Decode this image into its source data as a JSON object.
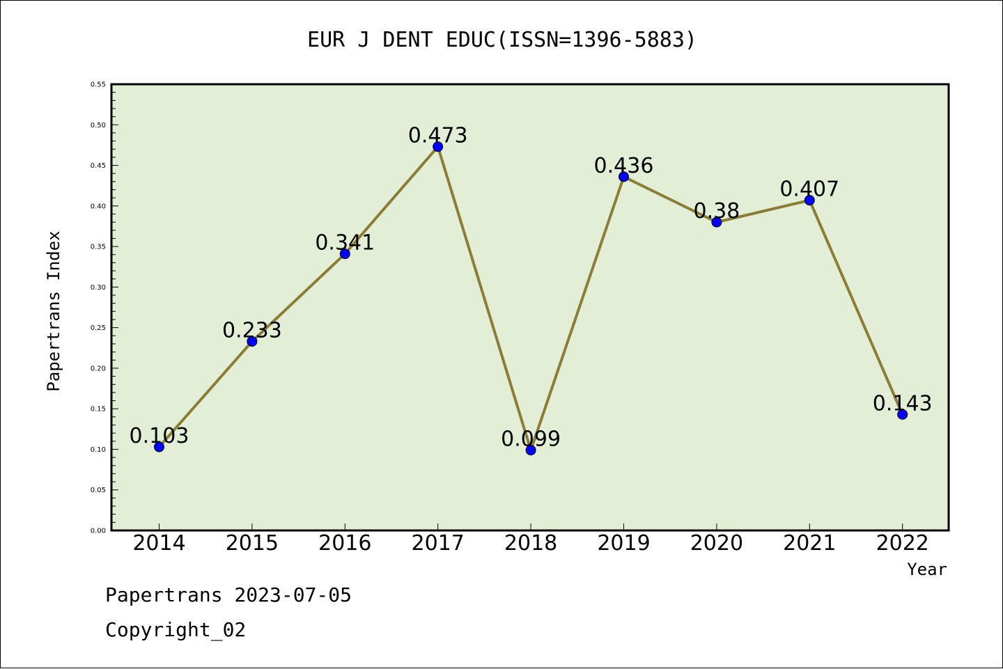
{
  "chart_data": {
    "type": "line",
    "title": "EUR J DENT EDUC(ISSN=1396-5883)",
    "xlabel": "Year",
    "ylabel": "Papertrans Index",
    "categories": [
      "2014",
      "2015",
      "2016",
      "2017",
      "2018",
      "2019",
      "2020",
      "2021",
      "2022"
    ],
    "series": [
      {
        "values": [
          0.103,
          0.233,
          0.341,
          0.473,
          0.099,
          0.436,
          0.38,
          0.407,
          0.143
        ],
        "labels": [
          "0.103",
          "0.233",
          "0.341",
          "0.473",
          "0.099",
          "0.436",
          "0.38",
          "0.407",
          "0.143"
        ]
      }
    ],
    "ylim": [
      0,
      0.55
    ],
    "yticks": [
      "0.00",
      "0.05",
      "0.10",
      "0.15",
      "0.20",
      "0.25",
      "0.30",
      "0.35",
      "0.40",
      "0.45",
      "0.50",
      "0.55"
    ],
    "grid": false,
    "colors": {
      "plot_background": "#e2efd6",
      "line": "#8b7d35",
      "marker": "#0000ff",
      "axis": "#000000"
    }
  },
  "footer": {
    "line1": "Papertrans 2023-07-05",
    "line2": "Copyright_02"
  }
}
